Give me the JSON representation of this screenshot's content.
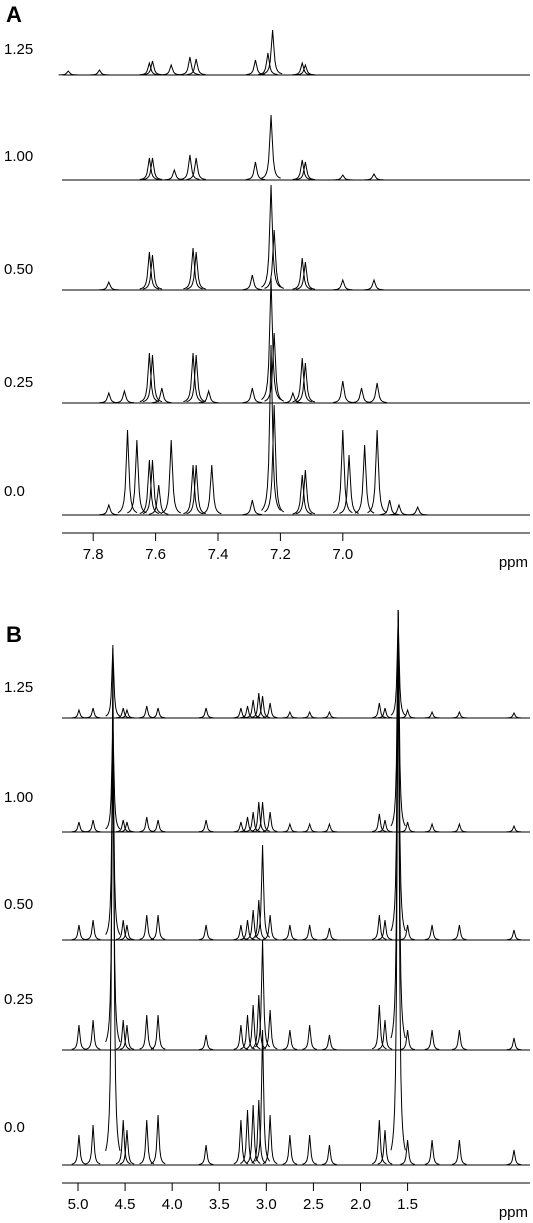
{
  "chart_data": [
    {
      "type": "spectrum",
      "panel": "A",
      "xlabel": "ppm",
      "xlim": [
        7.9,
        6.4
      ],
      "xticks": [
        7.8,
        7.6,
        7.4,
        7.2,
        {
          "value": 7,
          "label": "7.0"
        }
      ],
      "series": [
        {
          "name": "1.25",
          "x": [
            7.88,
            7.78,
            7.62,
            7.61,
            7.55,
            7.49,
            7.47,
            7.28,
            7.24,
            7.225,
            7.13,
            7.12
          ],
          "values": [
            4,
            5,
            12,
            14,
            10,
            18,
            16,
            15,
            22,
            45,
            12,
            10
          ]
        },
        {
          "name": "1.00",
          "x": [
            7.62,
            7.61,
            7.54,
            7.49,
            7.47,
            7.28,
            7.23,
            7.13,
            7.12,
            7.0,
            6.9
          ],
          "values": [
            22,
            22,
            10,
            25,
            22,
            18,
            65,
            20,
            18,
            5,
            6
          ]
        },
        {
          "name": "0.50",
          "x": [
            7.75,
            7.62,
            7.61,
            7.48,
            7.47,
            7.29,
            7.23,
            7.22,
            7.13,
            7.12,
            7.0,
            6.9
          ],
          "values": [
            8,
            38,
            35,
            42,
            38,
            15,
            105,
            60,
            32,
            28,
            10,
            10
          ]
        },
        {
          "name": "0.25",
          "x": [
            7.75,
            7.7,
            7.62,
            7.61,
            7.58,
            7.48,
            7.47,
            7.43,
            7.29,
            7.23,
            7.22,
            7.16,
            7.13,
            7.12,
            7.0,
            6.94,
            6.89
          ],
          "values": [
            10,
            12,
            50,
            48,
            15,
            50,
            48,
            12,
            15,
            125,
            70,
            10,
            45,
            40,
            22,
            15,
            20
          ]
        },
        {
          "name": "0.0",
          "x": [
            7.75,
            7.69,
            7.66,
            7.62,
            7.61,
            7.59,
            7.55,
            7.48,
            7.47,
            7.42,
            7.29,
            7.23,
            7.22,
            7.13,
            7.12,
            7.0,
            6.98,
            6.93,
            6.89,
            6.85,
            6.82,
            6.76
          ],
          "values": [
            10,
            85,
            75,
            55,
            55,
            30,
            75,
            50,
            50,
            50,
            15,
            170,
            110,
            40,
            45,
            85,
            60,
            70,
            85,
            15,
            10,
            8
          ]
        }
      ]
    },
    {
      "type": "spectrum",
      "panel": "B",
      "xlabel": "ppm",
      "xlim": [
        5.17,
        0.2
      ],
      "xticks": [
        {
          "value": 5,
          "label": "5.0"
        },
        4.5,
        {
          "value": 4,
          "label": "4.0"
        },
        3.5,
        {
          "value": 3,
          "label": "3.0"
        },
        2.5,
        {
          "value": 2,
          "label": "2.0"
        },
        1.5
      ],
      "series": [
        {
          "name": "1.25",
          "x": [
            4.99,
            4.84,
            4.63,
            4.52,
            4.48,
            4.27,
            4.15,
            3.64,
            3.27,
            3.2,
            3.14,
            3.08,
            3.04,
            2.96,
            2.75,
            2.54,
            2.33,
            1.8,
            1.74,
            1.6,
            1.5,
            1.24,
            0.95,
            0.37
          ],
          "values": [
            8,
            10,
            70,
            10,
            8,
            12,
            10,
            10,
            10,
            12,
            18,
            25,
            22,
            15,
            6,
            6,
            6,
            15,
            10,
            100,
            8,
            6,
            6,
            5
          ]
        },
        {
          "name": "1.00",
          "x": [
            4.99,
            4.84,
            4.63,
            4.52,
            4.48,
            4.27,
            4.15,
            3.64,
            3.27,
            3.2,
            3.14,
            3.08,
            3.04,
            2.96,
            2.75,
            2.54,
            2.33,
            1.8,
            1.74,
            1.6,
            1.5,
            1.24,
            0.95,
            0.37
          ],
          "values": [
            10,
            12,
            110,
            12,
            10,
            15,
            12,
            12,
            10,
            15,
            20,
            30,
            30,
            20,
            8,
            8,
            8,
            18,
            12,
            220,
            10,
            8,
            8,
            6
          ]
        },
        {
          "name": "0.50",
          "x": [
            4.99,
            4.84,
            4.63,
            4.52,
            4.48,
            4.27,
            4.15,
            3.64,
            3.27,
            3.2,
            3.14,
            3.08,
            3.04,
            2.96,
            2.75,
            2.54,
            2.33,
            1.8,
            1.74,
            1.6,
            1.5,
            1.24,
            0.95,
            0.37
          ],
          "values": [
            15,
            20,
            200,
            20,
            15,
            25,
            25,
            15,
            15,
            20,
            30,
            40,
            95,
            25,
            15,
            15,
            12,
            25,
            20,
            330,
            15,
            15,
            15,
            10
          ]
        },
        {
          "name": "0.25",
          "x": [
            4.99,
            4.84,
            4.63,
            4.52,
            4.48,
            4.27,
            4.15,
            3.64,
            3.27,
            3.2,
            3.14,
            3.08,
            3.04,
            2.96,
            2.75,
            2.54,
            2.33,
            1.8,
            1.74,
            1.6,
            1.5,
            1.24,
            0.95,
            0.37
          ],
          "values": [
            25,
            30,
            300,
            30,
            25,
            35,
            35,
            15,
            25,
            35,
            45,
            55,
            110,
            40,
            20,
            25,
            15,
            45,
            30,
            440,
            20,
            20,
            20,
            12
          ]
        },
        {
          "name": "0.0",
          "x": [
            4.99,
            4.84,
            4.63,
            4.52,
            4.48,
            4.27,
            4.15,
            3.64,
            3.27,
            3.2,
            3.14,
            3.08,
            3.04,
            2.96,
            2.75,
            2.54,
            2.33,
            1.8,
            1.74,
            1.6,
            1.5,
            1.24,
            0.95,
            0.37
          ],
          "values": [
            30,
            40,
            520,
            45,
            35,
            45,
            50,
            20,
            45,
            55,
            60,
            65,
            135,
            50,
            30,
            30,
            20,
            45,
            35,
            545,
            25,
            25,
            25,
            15
          ]
        }
      ]
    }
  ]
}
